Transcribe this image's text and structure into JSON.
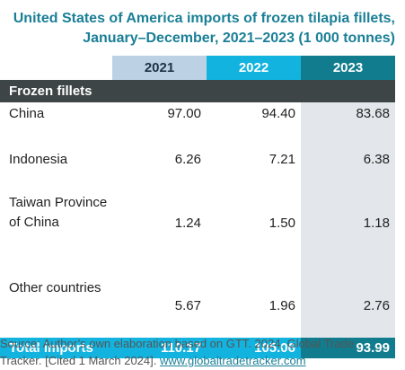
{
  "title": {
    "line1": "United States of America imports of frozen tilapia fillets,",
    "line2": "January–December, 2021–2023 (1 000 tonnes)"
  },
  "columns": [
    "2021",
    "2022",
    "2023"
  ],
  "section_label": "Frozen fillets",
  "rows": [
    {
      "name": "China",
      "values": [
        "97.00",
        "94.40",
        "83.68"
      ]
    },
    {
      "name": "Indonesia",
      "values": [
        "6.26",
        "7.21",
        "6.38"
      ]
    },
    {
      "name": "Taiwan Province of China",
      "values": [
        "1.24",
        "1.50",
        "1.18"
      ]
    },
    {
      "name": "Other countries",
      "values": [
        "5.67",
        "1.96",
        "2.76"
      ]
    }
  ],
  "total": {
    "name": "Total imports",
    "values": [
      "110.17",
      "105.06",
      "93.99"
    ]
  },
  "source": {
    "text": "Source: Author’s own elaboration based on GTT. 2024. Global Trade Tracker. [Cited 1 March 2024]. ",
    "link": "www.globaltradetracker.com"
  },
  "colors": {
    "title": "#1a7f96",
    "header_2021": "#bcd2e4",
    "header_2022": "#12b3df",
    "header_2023": "#117c8e",
    "section_bar": "#3e4547",
    "highlight_column": "#e3e7eb"
  }
}
